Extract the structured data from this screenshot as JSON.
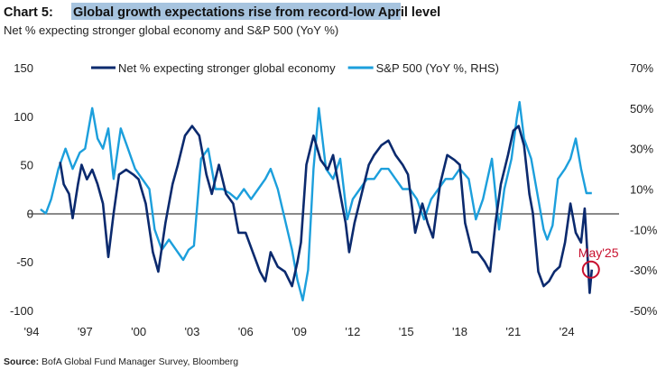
{
  "chart_data": {
    "type": "line",
    "title_prefix": "Chart 5:",
    "title": "Global growth expectations rise from record-low April level",
    "subtitle": "Net % expecting stronger global economy and S&P 500 (YoY %)",
    "source_label": "Source:",
    "source": "BofA Global Fund Manager Survey, Bloomberg",
    "annotation": {
      "label": "May'25",
      "x": 2025.35,
      "y": -58,
      "color": "#c8102e"
    },
    "left_axis": {
      "ylim": [
        -100,
        150
      ],
      "ticks": [
        150,
        100,
        50,
        0,
        -50,
        -100
      ],
      "tick_labels": [
        "150",
        "100",
        "50",
        "0",
        "-50",
        "-100"
      ]
    },
    "right_axis": {
      "ylim": [
        -50,
        70
      ],
      "ticks": [
        70,
        50,
        30,
        10,
        -10,
        -30,
        -50
      ],
      "tick_labels": [
        "70%",
        "50%",
        "30%",
        "10%",
        "-10%",
        "-30%",
        "-50%"
      ]
    },
    "x_axis": {
      "xlim": [
        1994,
        2027
      ],
      "ticks": [
        1994,
        1997,
        2000,
        2003,
        2006,
        2009,
        2012,
        2015,
        2018,
        2021,
        2024
      ],
      "tick_labels": [
        "'94",
        "'97",
        "'00",
        "'03",
        "'06",
        "'09",
        "'12",
        "'15",
        "'18",
        "'21",
        "'24"
      ]
    },
    "legend_position": "top",
    "series": [
      {
        "name": "Net % expecting stronger global economy",
        "axis": "left",
        "color": "#0b2a6e",
        "points": [
          [
            1995.6,
            53
          ],
          [
            1995.8,
            30
          ],
          [
            1996.1,
            20
          ],
          [
            1996.3,
            -5
          ],
          [
            1996.6,
            30
          ],
          [
            1996.8,
            50
          ],
          [
            1997.1,
            35
          ],
          [
            1997.4,
            45
          ],
          [
            1997.7,
            30
          ],
          [
            1998.0,
            10
          ],
          [
            1998.3,
            -45
          ],
          [
            1998.6,
            0
          ],
          [
            1998.9,
            40
          ],
          [
            1999.3,
            45
          ],
          [
            1999.7,
            40
          ],
          [
            2000.0,
            35
          ],
          [
            2000.4,
            10
          ],
          [
            2000.8,
            -40
          ],
          [
            2001.1,
            -60
          ],
          [
            2001.5,
            -10
          ],
          [
            2001.9,
            30
          ],
          [
            2002.2,
            50
          ],
          [
            2002.6,
            80
          ],
          [
            2003.0,
            90
          ],
          [
            2003.4,
            80
          ],
          [
            2003.8,
            40
          ],
          [
            2004.1,
            20
          ],
          [
            2004.5,
            50
          ],
          [
            2004.9,
            20
          ],
          [
            2005.3,
            10
          ],
          [
            2005.6,
            -20
          ],
          [
            2006.0,
            -20
          ],
          [
            2006.4,
            -40
          ],
          [
            2006.8,
            -60
          ],
          [
            2007.1,
            -70
          ],
          [
            2007.4,
            -40
          ],
          [
            2007.8,
            -55
          ],
          [
            2008.2,
            -60
          ],
          [
            2008.6,
            -75
          ],
          [
            2008.9,
            -50
          ],
          [
            2009.1,
            -30
          ],
          [
            2009.4,
            50
          ],
          [
            2009.8,
            80
          ],
          [
            2010.2,
            55
          ],
          [
            2010.6,
            45
          ],
          [
            2010.9,
            60
          ],
          [
            2011.3,
            20
          ],
          [
            2011.6,
            -10
          ],
          [
            2011.8,
            -40
          ],
          [
            2012.1,
            -10
          ],
          [
            2012.5,
            20
          ],
          [
            2012.9,
            50
          ],
          [
            2013.2,
            60
          ],
          [
            2013.6,
            70
          ],
          [
            2014.0,
            75
          ],
          [
            2014.4,
            60
          ],
          [
            2014.8,
            50
          ],
          [
            2015.1,
            40
          ],
          [
            2015.5,
            -20
          ],
          [
            2015.9,
            10
          ],
          [
            2016.2,
            -10
          ],
          [
            2016.5,
            -25
          ],
          [
            2016.9,
            30
          ],
          [
            2017.3,
            60
          ],
          [
            2017.7,
            55
          ],
          [
            2018.0,
            50
          ],
          [
            2018.3,
            -10
          ],
          [
            2018.7,
            -40
          ],
          [
            2019.0,
            -40
          ],
          [
            2019.4,
            -50
          ],
          [
            2019.7,
            -60
          ],
          [
            2020.0,
            -10
          ],
          [
            2020.3,
            30
          ],
          [
            2020.7,
            60
          ],
          [
            2021.0,
            85
          ],
          [
            2021.3,
            90
          ],
          [
            2021.6,
            70
          ],
          [
            2021.9,
            20
          ],
          [
            2022.1,
            0
          ],
          [
            2022.4,
            -60
          ],
          [
            2022.7,
            -75
          ],
          [
            2023.0,
            -70
          ],
          [
            2023.3,
            -60
          ],
          [
            2023.6,
            -55
          ],
          [
            2023.9,
            -30
          ],
          [
            2024.2,
            10
          ],
          [
            2024.5,
            -20
          ],
          [
            2024.8,
            -30
          ],
          [
            2025.0,
            5
          ],
          [
            2025.15,
            -40
          ],
          [
            2025.28,
            -82
          ],
          [
            2025.4,
            -58
          ]
        ]
      },
      {
        "name": "S&P 500 (YoY %, RHS)",
        "axis": "right",
        "color": "#1c9fdc",
        "points": [
          [
            1994.5,
            0
          ],
          [
            1994.8,
            -2
          ],
          [
            1995.1,
            5
          ],
          [
            1995.5,
            20
          ],
          [
            1995.9,
            30
          ],
          [
            1996.3,
            20
          ],
          [
            1996.7,
            28
          ],
          [
            1997.0,
            30
          ],
          [
            1997.4,
            50
          ],
          [
            1997.7,
            35
          ],
          [
            1998.0,
            30
          ],
          [
            1998.3,
            40
          ],
          [
            1998.6,
            15
          ],
          [
            1999.0,
            40
          ],
          [
            1999.4,
            30
          ],
          [
            1999.8,
            20
          ],
          [
            2000.2,
            15
          ],
          [
            2000.6,
            10
          ],
          [
            2000.9,
            -10
          ],
          [
            2001.3,
            -20
          ],
          [
            2001.7,
            -15
          ],
          [
            2002.1,
            -20
          ],
          [
            2002.5,
            -25
          ],
          [
            2002.8,
            -20
          ],
          [
            2003.1,
            -18
          ],
          [
            2003.5,
            25
          ],
          [
            2003.9,
            30
          ],
          [
            2004.3,
            10
          ],
          [
            2004.7,
            10
          ],
          [
            2005.1,
            8
          ],
          [
            2005.5,
            5
          ],
          [
            2005.9,
            10
          ],
          [
            2006.3,
            5
          ],
          [
            2006.7,
            10
          ],
          [
            2007.1,
            15
          ],
          [
            2007.4,
            20
          ],
          [
            2007.8,
            10
          ],
          [
            2008.2,
            -5
          ],
          [
            2008.6,
            -20
          ],
          [
            2008.9,
            -35
          ],
          [
            2009.2,
            -45
          ],
          [
            2009.5,
            -30
          ],
          [
            2009.8,
            20
          ],
          [
            2010.1,
            50
          ],
          [
            2010.5,
            20
          ],
          [
            2010.9,
            15
          ],
          [
            2011.3,
            25
          ],
          [
            2011.7,
            -5
          ],
          [
            2012.0,
            5
          ],
          [
            2012.4,
            10
          ],
          [
            2012.8,
            15
          ],
          [
            2013.2,
            15
          ],
          [
            2013.6,
            20
          ],
          [
            2014.0,
            20
          ],
          [
            2014.4,
            15
          ],
          [
            2014.8,
            10
          ],
          [
            2015.2,
            10
          ],
          [
            2015.6,
            5
          ],
          [
            2016.0,
            -5
          ],
          [
            2016.4,
            5
          ],
          [
            2016.8,
            10
          ],
          [
            2017.2,
            15
          ],
          [
            2017.6,
            15
          ],
          [
            2018.0,
            20
          ],
          [
            2018.5,
            15
          ],
          [
            2018.9,
            -5
          ],
          [
            2019.3,
            5
          ],
          [
            2019.8,
            25
          ],
          [
            2020.2,
            -10
          ],
          [
            2020.5,
            10
          ],
          [
            2020.9,
            25
          ],
          [
            2021.2,
            45
          ],
          [
            2021.35,
            53
          ],
          [
            2021.6,
            35
          ],
          [
            2022.0,
            25
          ],
          [
            2022.4,
            5
          ],
          [
            2022.7,
            -10
          ],
          [
            2022.9,
            -15
          ],
          [
            2023.2,
            -8
          ],
          [
            2023.5,
            15
          ],
          [
            2023.9,
            20
          ],
          [
            2024.2,
            25
          ],
          [
            2024.5,
            35
          ],
          [
            2024.8,
            20
          ],
          [
            2025.1,
            8
          ],
          [
            2025.4,
            8
          ]
        ]
      }
    ]
  }
}
